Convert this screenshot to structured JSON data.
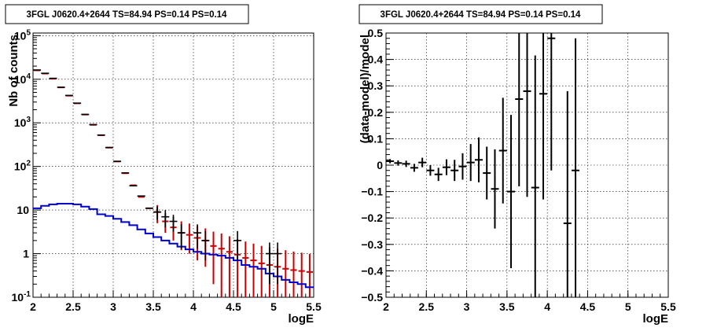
{
  "colors": {
    "data": "#cc0000",
    "model": "#0000cc",
    "residual": "#000000",
    "black_points": "#000000"
  },
  "chart_data": [
    {
      "type": "line",
      "title": "3FGL J0620.4+2644 TS=84.94 PS=0.14 PS=0.14",
      "xlabel": "logE",
      "ylabel": "Nb of counts",
      "xlim": [
        2,
        5.5
      ],
      "ylim": [
        0.1,
        120000
      ],
      "yscale": "log",
      "grid": true,
      "x_ticks": [
        "2",
        "2.5",
        "3",
        "3.5",
        "4",
        "4.5",
        "5",
        "5.5"
      ],
      "y_ticks": [
        "10^-1",
        "1",
        "10",
        "10^2",
        "10^3",
        "10^4",
        "10^5"
      ],
      "bin_edges": [
        2.0,
        2.1,
        2.2,
        2.3,
        2.4,
        2.5,
        2.6,
        2.7,
        2.8,
        2.9,
        3.0,
        3.1,
        3.2,
        3.3,
        3.4,
        3.5,
        3.6,
        3.7,
        3.8,
        3.9,
        4.0,
        4.1,
        4.2,
        4.3,
        4.4,
        4.5,
        4.6,
        4.7,
        4.8,
        4.9,
        5.0,
        5.1,
        5.2,
        5.3,
        5.4,
        5.5
      ],
      "series": [
        {
          "role": "total-model-red",
          "values": [
            16000,
            13500,
            10300,
            6500,
            4200,
            2800,
            1550,
            900,
            520,
            270,
            130,
            70,
            37,
            20,
            11,
            9,
            5.5,
            4,
            3,
            2.7,
            2.3,
            2.0,
            1.5,
            1.3,
            1.1,
            0.95,
            0.8,
            0.7,
            0.6,
            0.55,
            0.5,
            0.45,
            0.42,
            0.4,
            0.38
          ],
          "err_low": [
            0,
            0,
            0,
            0,
            0,
            0,
            0,
            0,
            0,
            0,
            0,
            0,
            0,
            0,
            0,
            4,
            2.5,
            2,
            1.8,
            1.7,
            1.6,
            1.5,
            1.3,
            1.25,
            1.08,
            0.93,
            0.78,
            0.68,
            0.58,
            0.53,
            0.48,
            0.43,
            0.4,
            0.38,
            0.36
          ],
          "err_high": [
            0,
            0,
            0,
            0,
            0,
            0,
            0,
            0,
            0,
            0,
            0,
            0,
            0,
            0,
            0,
            4,
            3,
            3,
            2.5,
            2.2,
            2.0,
            1.8,
            1.7,
            1.6,
            1.4,
            1.2,
            1.1,
            1.0,
            0.9,
            0.85,
            0.8,
            0.75,
            0.7,
            0.65,
            0.6
          ]
        },
        {
          "role": "source-model-blue",
          "values": [
            11,
            12.5,
            13.5,
            14,
            14,
            13.5,
            12,
            10.5,
            8,
            7.3,
            6.3,
            5.3,
            4.5,
            3.6,
            2.9,
            2.4,
            2.0,
            1.7,
            1.45,
            1.25,
            1.1,
            1.0,
            0.95,
            0.9,
            0.8,
            0.7,
            0.55,
            0.5,
            0.45,
            0.35,
            0.3,
            0.25,
            0.22,
            0.2,
            0.17
          ]
        },
        {
          "role": "observed-counts-black",
          "x": [
            2.05,
            2.15,
            2.25,
            2.35,
            2.45,
            2.55,
            2.65,
            2.75,
            2.85,
            2.95,
            3.05,
            3.15,
            3.25,
            3.35,
            3.45,
            3.55,
            3.65,
            3.75,
            3.85,
            4.05,
            4.15,
            4.55,
            4.95,
            5.05
          ],
          "y": [
            16300,
            13700,
            10500,
            6550,
            4250,
            2830,
            1560,
            910,
            525,
            272,
            131,
            71,
            36,
            21,
            11,
            9,
            7,
            5.5,
            3,
            3,
            2,
            2,
            1,
            1
          ],
          "err_low": [
            0,
            0,
            0,
            0,
            0,
            0,
            0,
            0,
            0,
            0,
            0,
            0,
            0,
            0,
            0,
            3,
            3,
            2.3,
            1.7,
            1.7,
            1.3,
            1.3,
            0.8,
            0.8
          ],
          "err_high": [
            0,
            0,
            0,
            0,
            0,
            0,
            0,
            0,
            0,
            0,
            0,
            0,
            0,
            0,
            0,
            3,
            3,
            2.3,
            1.7,
            1.7,
            1.3,
            1.3,
            0.8,
            0.8
          ]
        }
      ]
    },
    {
      "type": "scatter",
      "title": "3FGL J0620.4+2644 TS=84.94 PS=0.14 PS=0.14",
      "xlabel": "logE",
      "ylabel": "(data-model)/model",
      "xlim": [
        2,
        5.5
      ],
      "ylim": [
        -0.5,
        0.5
      ],
      "grid": true,
      "x_ticks": [
        "2",
        "2.5",
        "3",
        "3.5",
        "4",
        "4.5",
        "5",
        "5.5"
      ],
      "y_ticks": [
        "−0.5",
        "−0.4",
        "−0.3",
        "−0.2",
        "−0.1",
        "0",
        "0.1",
        "0.2",
        "0.3",
        "0.4",
        "0.5"
      ],
      "series": [
        {
          "role": "residuals",
          "x": [
            2.05,
            2.15,
            2.25,
            2.35,
            2.45,
            2.55,
            2.65,
            2.75,
            2.85,
            2.95,
            3.05,
            3.15,
            3.25,
            3.35,
            3.45,
            3.55,
            3.65,
            3.75,
            3.85,
            3.95,
            4.05,
            4.25,
            4.35
          ],
          "y": [
            0.015,
            0.008,
            0.005,
            -0.01,
            0.01,
            -0.02,
            -0.035,
            -0.008,
            -0.02,
            -0.005,
            0.01,
            0.02,
            -0.03,
            -0.09,
            0.055,
            -0.1,
            0.25,
            0.28,
            -0.085,
            0.27,
            0.48,
            -0.22,
            -0.02
          ],
          "err": [
            0.008,
            0.01,
            0.012,
            0.015,
            0.018,
            0.02,
            0.025,
            0.03,
            0.04,
            0.05,
            0.07,
            0.085,
            0.1,
            0.15,
            0.2,
            0.29,
            0.33,
            0.4,
            0.5,
            0.4,
            0.5,
            0.5,
            0.5
          ]
        }
      ]
    }
  ]
}
